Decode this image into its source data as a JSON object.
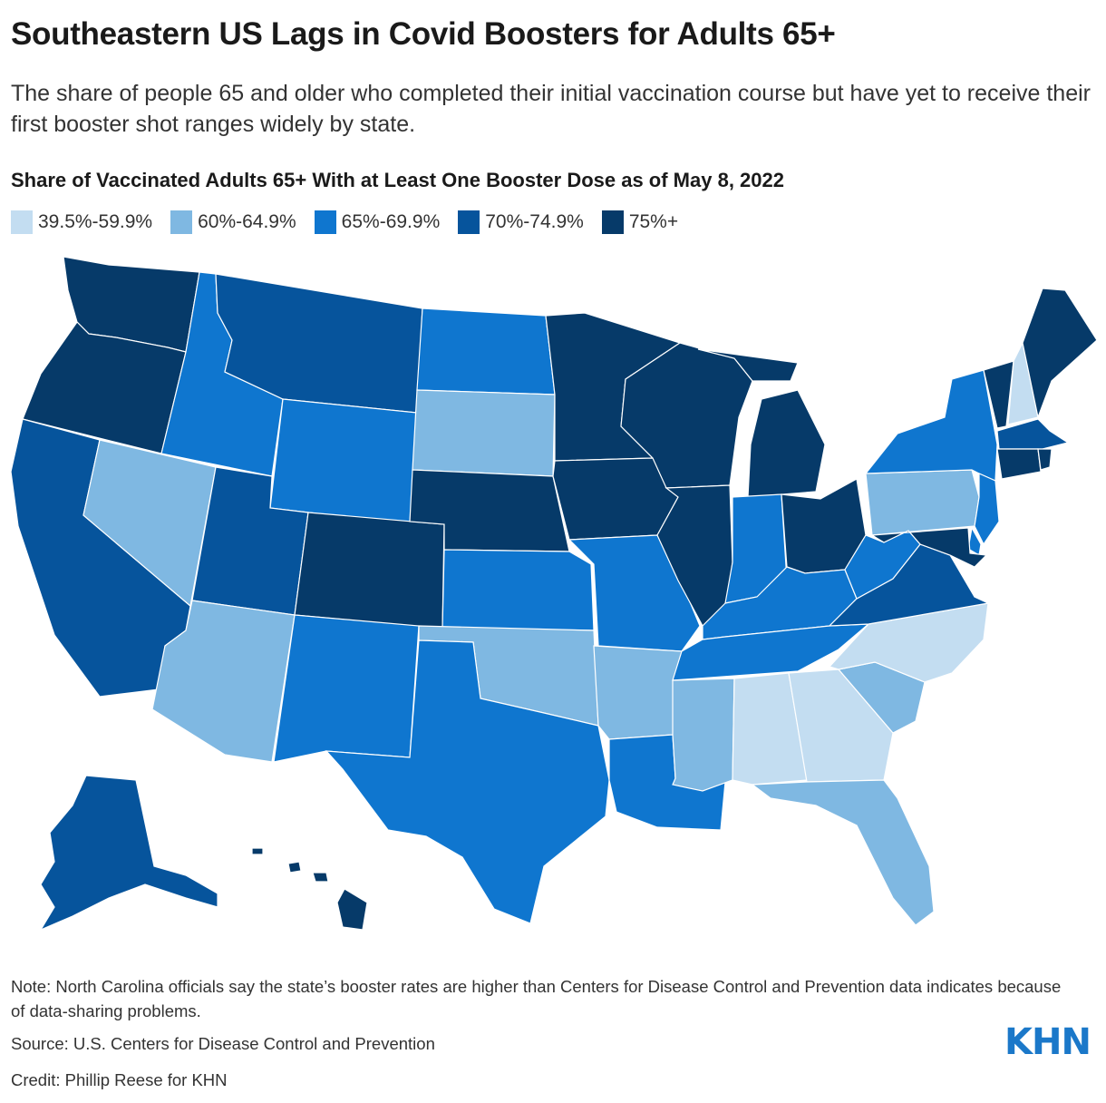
{
  "header": {
    "title": "Southeastern US Lags in Covid Boosters for Adults 65+",
    "subtitle": "The share of people 65 and older who completed their initial vaccination course but have yet to receive their first booster shot ranges widely by state."
  },
  "map": {
    "title": "Share of Vaccinated Adults 65+ With at Least One Booster Dose as of May 8, 2022",
    "legend": [
      {
        "label": "39.5%-59.9%",
        "color": "#c3ddf1"
      },
      {
        "label": "60%-64.9%",
        "color": "#7fb8e2"
      },
      {
        "label": "65%-69.9%",
        "color": "#0f76cf"
      },
      {
        "label": "70%-74.9%",
        "color": "#06549c"
      },
      {
        "label": "75%+",
        "color": "#063a69"
      }
    ],
    "states": {
      "WA": 4,
      "OR": 4,
      "CA": 3,
      "NV": 1,
      "ID": 2,
      "MT": 3,
      "WY": 2,
      "UT": 3,
      "AZ": 1,
      "CO": 4,
      "NM": 2,
      "ND": 2,
      "SD": 1,
      "NE": 4,
      "KS": 2,
      "OK": 1,
      "TX": 2,
      "MN": 4,
      "IA": 4,
      "MO": 2,
      "AR": 1,
      "LA": 2,
      "WI": 4,
      "IL": 4,
      "MI": 4,
      "IN": 2,
      "OH": 4,
      "KY": 2,
      "TN": 2,
      "MS": 1,
      "AL": 0,
      "GA": 0,
      "FL": 1,
      "SC": 1,
      "NC": 0,
      "VA": 3,
      "WV": 2,
      "PA": 1,
      "NY": 2,
      "NJ": 2,
      "DE": 2,
      "MD": 4,
      "VT": 4,
      "NH": 0,
      "ME": 4,
      "MA": 3,
      "CT": 4,
      "RI": 4,
      "AK": 3,
      "HI": 4
    }
  },
  "footer": {
    "note": "Note: North Carolina officials say the state’s booster rates are higher than Centers for Disease Control and Prevention data indicates because of data-sharing problems.",
    "source": "Source: U.S. Centers for Disease Control and Prevention",
    "credit": "Credit: Phillip Reese for KHN",
    "logo": "KHN"
  }
}
